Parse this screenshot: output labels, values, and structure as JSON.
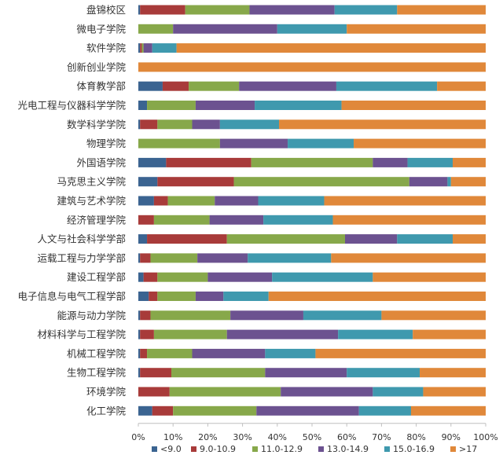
{
  "chart_data": {
    "type": "bar",
    "orientation": "horizontal",
    "stacked": "percent",
    "categories": [
      "盘锦校区",
      "微电子学院",
      "软件学院",
      "创新创业学院",
      "体育教学部",
      "光电工程与仪器科学学院",
      "数学科学学院",
      "物理学院",
      "外国语学院",
      "马克思主义学院",
      "建筑与艺术学院",
      "经济管理学院",
      "人文与社会科学学部",
      "运载工程与力学学部",
      "建设工程学部",
      "电子信息与电气工程学部",
      "能源与动力学院",
      "材料科学与工程学院",
      "机械工程学院",
      "生物工程学院",
      "环境学院",
      "化工学院"
    ],
    "series": [
      {
        "name": "<9.0",
        "color": "#3b6491",
        "values": [
          0.5,
          0,
          0.5,
          0,
          7,
          2.5,
          0.5,
          0,
          8,
          5.5,
          4.5,
          0,
          2.5,
          0.5,
          1.5,
          3,
          0.5,
          0.5,
          0.5,
          0.5,
          0,
          4
        ]
      },
      {
        "name": "9.0-10.9",
        "color": "#a83b3a",
        "values": [
          13,
          0,
          0.5,
          0,
          7.5,
          0,
          5,
          0,
          24.5,
          22,
          4,
          4.5,
          23,
          3,
          4,
          2.5,
          3,
          4,
          2,
          9,
          9,
          6
        ]
      },
      {
        "name": "11.0-12.9",
        "color": "#87a84a",
        "values": [
          18.5,
          10,
          0.5,
          0,
          14.5,
          14,
          10,
          23.5,
          35,
          50.5,
          13.5,
          16,
          34,
          13.5,
          14.5,
          11,
          23,
          21,
          13,
          27,
          32,
          24
        ]
      },
      {
        "name": "13.0-14.9",
        "color": "#6c5290",
        "values": [
          24.5,
          30,
          2.5,
          0,
          28,
          17,
          8,
          19.5,
          10,
          11,
          12.5,
          15.5,
          15,
          14.5,
          18.5,
          8,
          21,
          32,
          21,
          23.5,
          26.5,
          29.5
        ]
      },
      {
        "name": "15.0-16.9",
        "color": "#3f99ae",
        "values": [
          18,
          20,
          7,
          0,
          29,
          25,
          17,
          19,
          13,
          1,
          19,
          20,
          16,
          24,
          29,
          13,
          22.5,
          21.5,
          14.5,
          21,
          14.5,
          15
        ]
      },
      {
        "name": ">17",
        "color": "#e0883a",
        "values": [
          25.5,
          40,
          89,
          100,
          14,
          41.5,
          59.5,
          38,
          9.5,
          10,
          46.5,
          44,
          9.5,
          44.5,
          32.5,
          62.5,
          30,
          21,
          49,
          19,
          18,
          21.5
        ]
      }
    ],
    "xaxis": {
      "ticks": [
        0,
        10,
        20,
        30,
        40,
        50,
        60,
        70,
        80,
        90,
        100
      ],
      "tick_labels": [
        "0%",
        "10%",
        "20%",
        "30%",
        "40%",
        "50%",
        "60%",
        "70%",
        "80%",
        "90%",
        "100%"
      ],
      "range": [
        0,
        100
      ]
    },
    "grid": false,
    "legend": "bottom-center"
  }
}
